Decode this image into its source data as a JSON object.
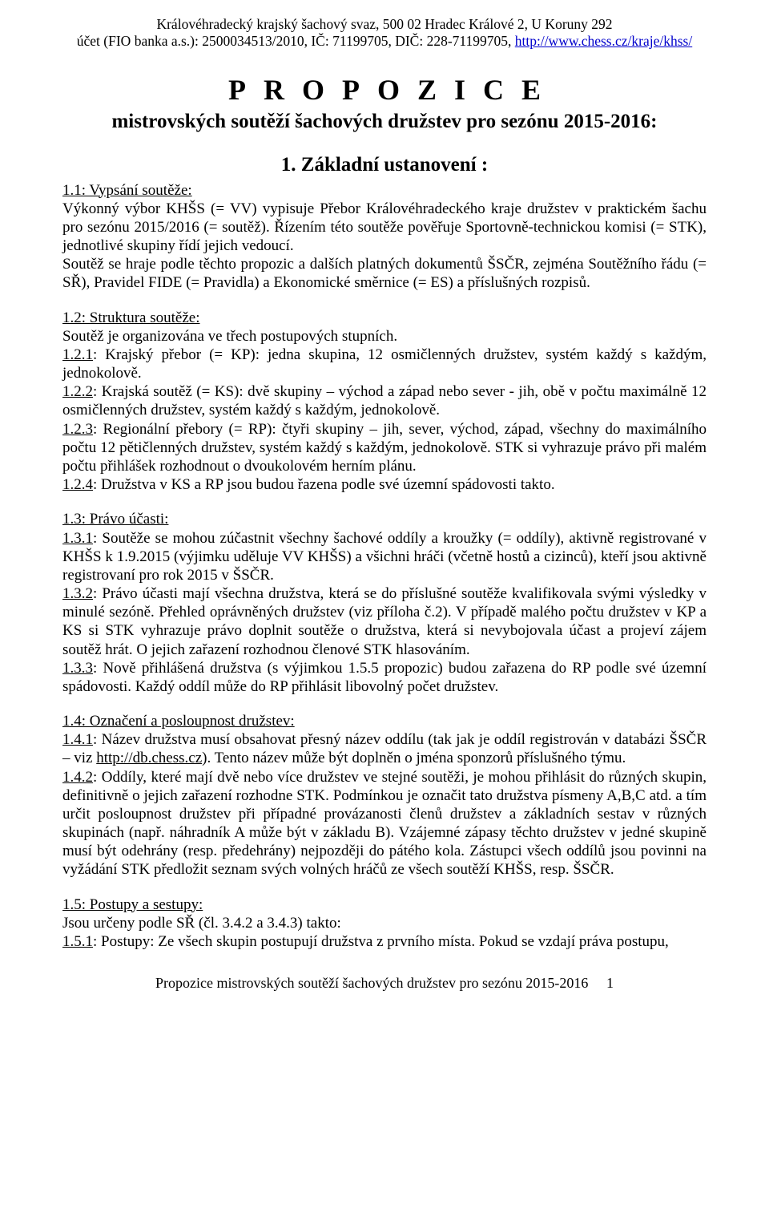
{
  "header": {
    "line1": "Královéhradecký krajský šachový svaz, 500 02 Hradec Králové 2, U Koruny 292",
    "line2_pre": "účet (FIO banka a.s.): 2500034513/2010,  IČ: 71199705, DIČ: 228-71199705, ",
    "url": "http://www.chess.cz/kraje/khss/"
  },
  "title": "PROPOZICE",
  "subtitle": "mistrovských soutěží šachových družstev pro sezónu 2015-2016:",
  "section1_head": "1. Základní ustanovení :",
  "p_1_1_lead": "1.1:  Vypsání soutěže:",
  "p_1_1_body": "Výkonný výbor KHŠS (= VV) vypisuje Přebor Královéhradeckého kraje družstev v praktickém šachu pro sezónu 2015/2016 (= soutěž). Řízením této soutěže pověřuje Sportovně-technickou komisi (= STK), jednotlivé skupiny řídí jejich vedoucí.",
  "p_1_1_body2": "Soutěž se hraje podle těchto propozic a dalších platných dokumentů ŠSČR, zejména  Soutěžního řádu (= SŘ), Pravidel FIDE (= Pravidla) a Ekonomické směrnice (= ES) a příslušných rozpisů.",
  "p_1_2_lead": "1.2:  Struktura soutěže:",
  "p_1_2_body": "Soutěž je organizována ve třech postupových stupních.",
  "p_1_2_1": "1.2.1",
  "p_1_2_1_rest": ": Krajský přebor (= KP):  jedna skupina, 12 osmičlenných družstev, systém každý s každým, jednokolově.",
  "p_1_2_2": "1.2.2",
  "p_1_2_2_rest": ": Krajská soutěž (= KS):  dvě skupiny – východ a západ nebo sever - jih, obě v počtu maximálně 12 osmičlenných družstev, systém každý s každým, jednokolově.",
  "p_1_2_3": "1.2.3",
  "p_1_2_3_rest": ": Regionální přebory (= RP):  čtyři skupiny – jih, sever, východ, západ, všechny do maximálního počtu 12 pětičlenných družstev, systém každý s každým, jednokolově. STK si vyhrazuje právo při malém počtu přihlášek rozhodnout o dvoukolovém herním plánu.",
  "p_1_2_4": "1.2.4",
  "p_1_2_4_rest": ": Družstva v KS a RP jsou budou řazena podle své územní spádovosti takto.",
  "p_1_3_lead": "1.3:  Právo účasti:",
  "p_1_3_1": "1.3.1",
  "p_1_3_1_rest": ": Soutěže se mohou zúčastnit všechny šachové oddíly a kroužky (= oddíly), aktivně registrované v KHŠS k 1.9.2015 (výjimku uděluje VV KHŠS) a všichni hráči (včetně hostů a cizinců), kteří jsou aktivně registrovaní pro rok 2015 v ŠSČR.",
  "p_1_3_2": "1.3.2",
  "p_1_3_2_rest": ": Právo účasti mají všechna družstva, která se do příslušné soutěže kvalifikovala svými výsledky v minulé sezóně.  Přehled oprávněných družstev (viz příloha č.2). V případě malého počtu družstev v KP a KS si STK vyhrazuje právo doplnit soutěže o družstva, která si nevybojovala účast a projeví zájem soutěž hrát. O jejich zařazení rozhodnou členové STK hlasováním.",
  "p_1_3_3": "1.3.3",
  "p_1_3_3_rest": ": Nově přihlášená družstva (s výjimkou 1.5.5 propozic) budou zařazena do RP podle své územní spádovosti. Každý oddíl může do RP přihlásit libovolný počet družstev.",
  "p_1_4_lead": "1.4:  Označení a posloupnost družstev:",
  "p_1_4_1": "1.4.1",
  "p_1_4_1_rest_a": ": Název družstva musí obsahovat přesný název oddílu (tak jak je oddíl registrován v databázi ŠSČR – viz ",
  "p_1_4_1_link": "http://db.chess.cz",
  "p_1_4_1_rest_b": ").  Tento název může být doplněn o jména sponzorů příslušného týmu.",
  "p_1_4_2": "1.4.2",
  "p_1_4_2_rest": ": Oddíly, které mají dvě nebo více družstev ve stejné soutěži, je mohou přihlásit do různých skupin, definitivně o jejich zařazení rozhodne STK.  Podmínkou je označit tato družstva písmeny A,B,C atd. a tím určit posloupnost družstev při případné provázanosti členů družstev a základních sestav v různých skupinách (např. náhradník A může být v základu B). Vzájemné zápasy těchto družstev v jedné skupině musí být odehrány (resp. předehrány) nejpozději do pátého kola. Zástupci všech oddílů jsou povinni na vyžádání STK předložit seznam svých volných hráčů ze všech soutěží KHŠS, resp. ŠSČR.",
  "p_1_5_lead": "1.5:  Postupy a sestupy:",
  "p_1_5_body": "Jsou určeny podle SŘ (čl. 3.4.2 a 3.4.3) takto:",
  "p_1_5_1": "1.5.1",
  "p_1_5_1_rest": ": Postupy: Ze všech skupin postupují družstva z prvního místa. Pokud se vzdají práva postupu,",
  "footer_text": "Propozice mistrovských soutěží šachových družstev pro sezónu 2015-2016",
  "footer_page": "1"
}
